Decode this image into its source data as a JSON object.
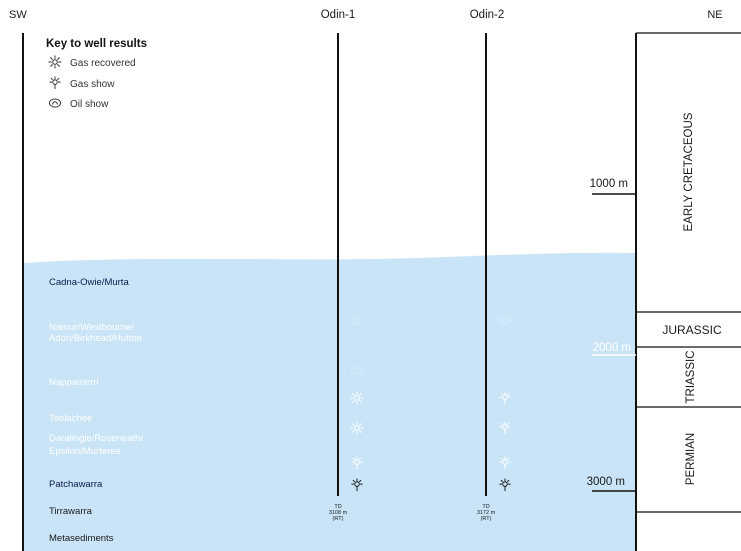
{
  "directions": {
    "left": "SW",
    "right": "NE"
  },
  "wells": [
    {
      "name": "Odin-1",
      "td_label": "TD",
      "td_depth": "3108 m",
      "td_note": "(RT)"
    },
    {
      "name": "Odin-2",
      "td_label": "TD",
      "td_depth": "3172 m",
      "td_note": "(RT)"
    }
  ],
  "key": {
    "title": "Key to well results",
    "items": [
      {
        "icon": "gas-recovered-icon",
        "label": "Gas recovered"
      },
      {
        "icon": "gas-show-icon",
        "label": "Gas show"
      },
      {
        "icon": "oil-show-icon",
        "label": "Oil show"
      }
    ]
  },
  "formations": [
    {
      "name": "Cadna-Owie/Murta",
      "color": "#c9e4f6"
    },
    {
      "name": "Namur/Westbourne/\nAdori/Birkhead/Hutton",
      "color": "#4aa6e8"
    },
    {
      "name": "Nappamerri",
      "color": "#0c1a4c"
    },
    {
      "name": "Toolachee",
      "color": "#3d3d3d"
    },
    {
      "name": "Daralingie/Roseneath/\nEpsilon/Murteree",
      "color": "#7d8ea9"
    },
    {
      "name": "Patchawarra",
      "color": "#8cc2ef"
    },
    {
      "name": "Tirrawarra",
      "color": "#d5d5d5"
    },
    {
      "name": "Metasediments",
      "color": "#f0f0f0"
    }
  ],
  "depths": [
    "1000 m",
    "2000 m",
    "3000 m"
  ],
  "ages": [
    "EARLY CRETACEOUS",
    "JURASSIC",
    "TRIASSIC",
    "PERMIAN"
  ],
  "results": [
    {
      "well": 0,
      "type": "oil-show",
      "formation": "Namur/Westbourne"
    },
    {
      "well": 1,
      "type": "oil-show",
      "formation": "Namur/Westbourne"
    },
    {
      "well": 0,
      "type": "oil-show",
      "formation": "Nappamerri"
    },
    {
      "well": 0,
      "type": "gas-recovered",
      "formation": "Toolachee"
    },
    {
      "well": 1,
      "type": "gas-show",
      "formation": "Toolachee"
    },
    {
      "well": 0,
      "type": "gas-recovered",
      "formation": "Daralingie"
    },
    {
      "well": 1,
      "type": "gas-show",
      "formation": "Daralingie"
    },
    {
      "well": 0,
      "type": "gas-show",
      "formation": "Patchawarra (upper)"
    },
    {
      "well": 1,
      "type": "gas-show",
      "formation": "Patchawarra (upper)"
    },
    {
      "well": 0,
      "type": "gas-show",
      "formation": "Patchawarra (lower)"
    },
    {
      "well": 1,
      "type": "gas-show",
      "formation": "Patchawarra (lower)"
    }
  ]
}
